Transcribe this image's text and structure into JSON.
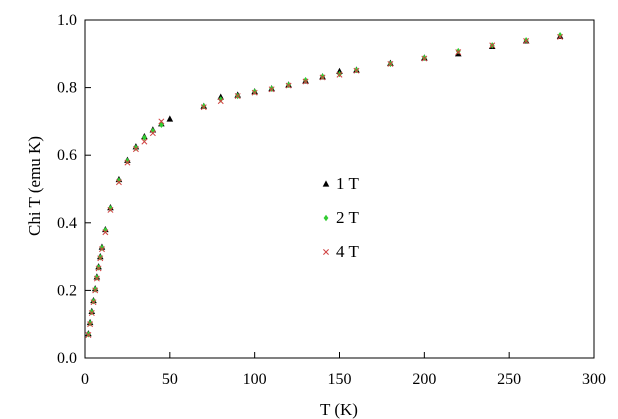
{
  "chart_data": {
    "type": "scatter",
    "title": "",
    "xlabel": "T (K)",
    "ylabel": "Chi T (emu K)",
    "xlim": [
      0,
      300
    ],
    "ylim": [
      0,
      1.0
    ],
    "xticks": [
      "0",
      "50",
      "100",
      "150",
      "200",
      "250",
      "300"
    ],
    "yticks": [
      "0.0",
      "0.2",
      "0.4",
      "0.6",
      "0.8",
      "1.0"
    ],
    "grid": false,
    "legend_position": "center",
    "series": [
      {
        "name": "1 T",
        "marker": "triangle",
        "color": "#000000",
        "points": [
          [
            2,
            0.072
          ],
          [
            3,
            0.105
          ],
          [
            4,
            0.138
          ],
          [
            5,
            0.17
          ],
          [
            6,
            0.205
          ],
          [
            7,
            0.24
          ],
          [
            8,
            0.27
          ],
          [
            9,
            0.3
          ],
          [
            10,
            0.328
          ],
          [
            12,
            0.38
          ],
          [
            15,
            0.445
          ],
          [
            20,
            0.528
          ],
          [
            25,
            0.585
          ],
          [
            30,
            0.625
          ],
          [
            35,
            0.655
          ],
          [
            40,
            0.675
          ],
          [
            45,
            0.693
          ],
          [
            50,
            0.707
          ],
          [
            70,
            0.745
          ],
          [
            80,
            0.772
          ],
          [
            90,
            0.778
          ],
          [
            100,
            0.788
          ],
          [
            110,
            0.797
          ],
          [
            120,
            0.808
          ],
          [
            130,
            0.82
          ],
          [
            140,
            0.832
          ],
          [
            150,
            0.848
          ],
          [
            160,
            0.852
          ],
          [
            180,
            0.872
          ],
          [
            200,
            0.888
          ],
          [
            220,
            0.9
          ],
          [
            240,
            0.922
          ],
          [
            260,
            0.938
          ],
          [
            280,
            0.952
          ]
        ]
      },
      {
        "name": "2 T",
        "marker": "diamond",
        "color": "#33cc33",
        "points": [
          [
            2,
            0.07
          ],
          [
            3,
            0.103
          ],
          [
            4,
            0.136
          ],
          [
            5,
            0.168
          ],
          [
            6,
            0.203
          ],
          [
            7,
            0.238
          ],
          [
            8,
            0.268
          ],
          [
            9,
            0.298
          ],
          [
            10,
            0.326
          ],
          [
            12,
            0.378
          ],
          [
            15,
            0.443
          ],
          [
            20,
            0.525
          ],
          [
            25,
            0.583
          ],
          [
            30,
            0.622
          ],
          [
            35,
            0.652
          ],
          [
            40,
            0.672
          ],
          [
            45,
            0.69
          ],
          [
            70,
            0.745
          ],
          [
            80,
            0.765
          ],
          [
            90,
            0.775
          ],
          [
            100,
            0.788
          ],
          [
            110,
            0.797
          ],
          [
            120,
            0.808
          ],
          [
            130,
            0.822
          ],
          [
            140,
            0.833
          ],
          [
            150,
            0.84
          ],
          [
            160,
            0.852
          ],
          [
            180,
            0.87
          ],
          [
            200,
            0.888
          ],
          [
            220,
            0.908
          ],
          [
            240,
            0.925
          ],
          [
            260,
            0.94
          ],
          [
            280,
            0.955
          ]
        ]
      },
      {
        "name": "4 T",
        "marker": "x",
        "color": "#d04040",
        "points": [
          [
            2,
            0.068
          ],
          [
            3,
            0.1
          ],
          [
            4,
            0.133
          ],
          [
            5,
            0.165
          ],
          [
            6,
            0.2
          ],
          [
            7,
            0.235
          ],
          [
            8,
            0.265
          ],
          [
            9,
            0.295
          ],
          [
            10,
            0.322
          ],
          [
            12,
            0.372
          ],
          [
            15,
            0.438
          ],
          [
            20,
            0.52
          ],
          [
            25,
            0.578
          ],
          [
            30,
            0.618
          ],
          [
            35,
            0.64
          ],
          [
            40,
            0.665
          ],
          [
            45,
            0.7
          ],
          [
            70,
            0.742
          ],
          [
            80,
            0.76
          ],
          [
            90,
            0.775
          ],
          [
            100,
            0.785
          ],
          [
            110,
            0.795
          ],
          [
            120,
            0.806
          ],
          [
            130,
            0.818
          ],
          [
            140,
            0.83
          ],
          [
            150,
            0.838
          ],
          [
            160,
            0.85
          ],
          [
            180,
            0.87
          ],
          [
            200,
            0.886
          ],
          [
            220,
            0.905
          ],
          [
            240,
            0.925
          ],
          [
            260,
            0.938
          ],
          [
            280,
            0.95
          ]
        ]
      }
    ]
  }
}
